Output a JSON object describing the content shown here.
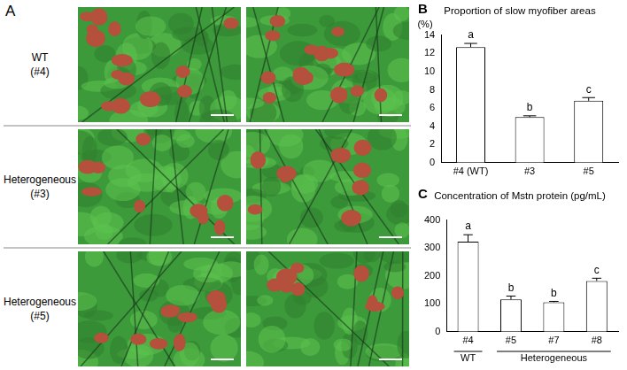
{
  "image_panel": {
    "panel": "A",
    "rows": [
      {
        "label": [
          "WT",
          "(#4)"
        ]
      },
      {
        "label": [
          "Heterogeneous",
          "(#3)"
        ]
      },
      {
        "label": [
          "Heterogeneous",
          "(#5)"
        ]
      }
    ]
  },
  "chart_data": [
    {
      "type": "bar",
      "panel": "B",
      "title": "Proportion of slow myofiber areas",
      "ylabel": "(%)",
      "categories": [
        "#4 (WT)",
        "#3",
        "#5"
      ],
      "values": [
        12.7,
        5.0,
        6.8
      ],
      "errors": [
        0.4,
        0.15,
        0.35
      ],
      "letters": [
        "a",
        "b",
        "c"
      ],
      "color": "#ffffff",
      "ylim": [
        0,
        14
      ],
      "yticks": [
        0,
        2,
        4,
        6,
        8,
        10,
        12,
        14
      ],
      "grid": false
    },
    {
      "type": "bar",
      "panel": "C",
      "title": "Concentration of Mstn protein (pg/mL)",
      "categories": [
        "#4",
        "#5",
        "#7",
        "#8"
      ],
      "groups": [
        {
          "label": "WT",
          "from": 0,
          "to": 0
        },
        {
          "label": "Heterogeneous",
          "from": 1,
          "to": 3
        }
      ],
      "values": [
        323,
        116,
        106,
        182
      ],
      "errors": [
        25,
        12,
        3,
        10
      ],
      "letters": [
        "a",
        "b",
        "b",
        "c"
      ],
      "color": "#ffffff",
      "ylim": [
        0,
        400
      ],
      "yticks": [
        0,
        100,
        200,
        300,
        400
      ],
      "grid": false
    }
  ]
}
